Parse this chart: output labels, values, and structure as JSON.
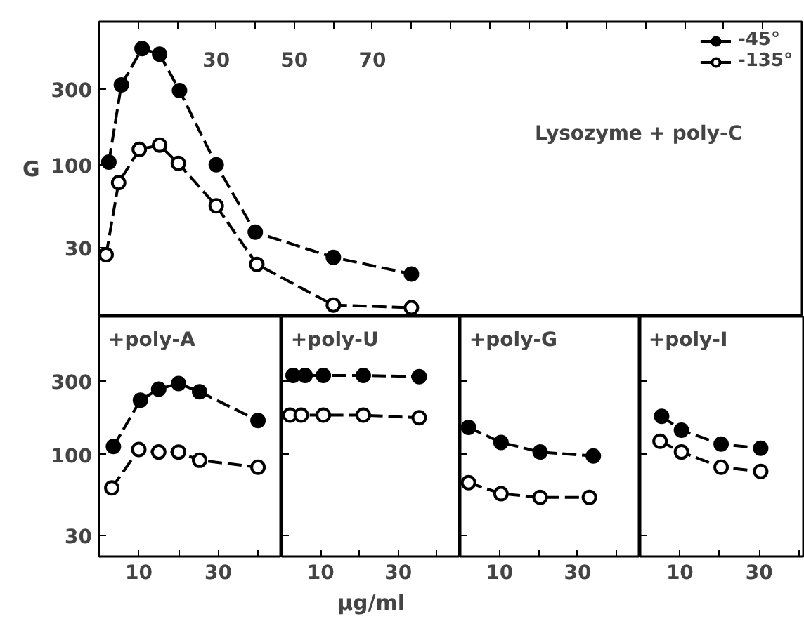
{
  "chart_data": [
    {
      "type": "line",
      "title": "Lysozyme + poly-C",
      "ylabel": "G",
      "xlim": [
        0,
        180
      ],
      "xticks": [
        {
          "value": 10,
          "label": null
        },
        {
          "value": 20,
          "label": null
        },
        30,
        {
          "value": 40,
          "label": null
        },
        50,
        {
          "value": 60,
          "label": null
        },
        70,
        {
          "value": 80,
          "label": null
        },
        {
          "value": 90,
          "label": null
        },
        {
          "value": 100,
          "label": null
        },
        {
          "value": 110,
          "label": null
        },
        {
          "value": 120,
          "label": null
        },
        {
          "value": 130,
          "label": null
        },
        {
          "value": 140,
          "label": null
        },
        {
          "value": 150,
          "label": null
        },
        {
          "value": 160,
          "label": null
        },
        {
          "value": 170,
          "label": null
        }
      ],
      "ylim": [
        11,
        800
      ],
      "yticks": [
        30,
        100,
        300
      ],
      "log": "y",
      "grid": false,
      "marker": "circle",
      "line_style": "dashed",
      "legend": "top right",
      "series": [
        {
          "name": "-45°",
          "color": "#000000",
          "x": [
            2.5,
            5.7,
            11,
            15.5,
            20.6,
            30,
            40,
            60,
            80
          ],
          "values": [
            104,
            319,
            542,
            499,
            294,
            100,
            37.5,
            26,
            20.4
          ]
        },
        {
          "name": "-135°",
          "color": "#000000",
          "x": [
            1.8,
            5,
            10.3,
            15.5,
            20.3,
            30,
            40.4,
            60,
            80
          ],
          "values": [
            27,
            77,
            125,
            133,
            102,
            55,
            23.5,
            13,
            12.5
          ]
        }
      ]
    },
    {
      "type": "line",
      "title": "+poly-A",
      "xlim": [
        0,
        46
      ],
      "xticks": [
        10,
        {
          "value": 20,
          "label": null
        },
        30,
        {
          "value": 40,
          "label": null
        }
      ],
      "ylim": [
        22,
        780
      ],
      "yticks": [
        30,
        100,
        300
      ],
      "log": "y",
      "grid": false,
      "marker": "circle",
      "line_style": "dashed",
      "series": [
        {
          "color": "#000000",
          "x": [
            3.6,
            10.4,
            15,
            20,
            25.3,
            40
          ],
          "values": [
            113,
            225,
            265,
            288,
            255,
            166
          ]
        },
        {
          "color": "#000000",
          "x": [
            3.2,
            10,
            15,
            20,
            25.3,
            40
          ],
          "values": [
            61,
            108,
            104,
            104,
            92,
            83
          ]
        }
      ]
    },
    {
      "type": "line",
      "title": "+poly-U",
      "xlabel": "µg/ml",
      "xlim": [
        0,
        46
      ],
      "xticks": [
        10,
        {
          "value": 20,
          "label": null
        },
        30,
        {
          "value": 40,
          "label": null
        }
      ],
      "ylim": [
        22,
        780
      ],
      "yticks": [
        30,
        100,
        300
      ],
      "tick_labels": "x",
      "log": "y",
      "grid": false,
      "marker": "circle",
      "line_style": "dashed",
      "series": [
        {
          "color": "#000000",
          "x": [
            2.9,
            6,
            10.7,
            21,
            35.4
          ],
          "values": [
            325,
            325,
            325,
            325,
            319
          ]
        },
        {
          "color": "#000000",
          "x": [
            2.1,
            5,
            10.7,
            21,
            35.4
          ],
          "values": [
            180,
            180,
            180,
            180,
            173
          ]
        }
      ]
    },
    {
      "type": "line",
      "title": "+poly-G",
      "xlim": [
        0,
        46
      ],
      "xticks": [
        10,
        {
          "value": 20,
          "label": null
        },
        30,
        {
          "value": 40,
          "label": null
        }
      ],
      "ylim": [
        22,
        780
      ],
      "yticks": [
        30,
        100,
        300
      ],
      "tick_labels": "x",
      "log": "y",
      "grid": false,
      "marker": "circle",
      "line_style": "dashed",
      "series": [
        {
          "color": "#000000",
          "x": [
            2.1,
            10.4,
            20.4,
            34
          ],
          "values": [
            150,
            120,
            104,
            98
          ]
        },
        {
          "color": "#000000",
          "x": [
            2.1,
            10.4,
            20.4,
            33
          ],
          "values": [
            66,
            56,
            53,
            53
          ]
        }
      ]
    },
    {
      "type": "line",
      "title": "+poly-I",
      "xlim": [
        0,
        41.5
      ],
      "xticks": [
        10,
        {
          "value": 20,
          "label": null
        },
        30,
        {
          "value": 40,
          "label": null
        }
      ],
      "ylim": [
        22,
        780
      ],
      "yticks": [
        30,
        100,
        300
      ],
      "tick_labels": "x",
      "log": "y",
      "grid": false,
      "marker": "circle",
      "line_style": "dashed",
      "series": [
        {
          "color": "#000000",
          "x": [
            5.4,
            10.4,
            20.4,
            30.4
          ],
          "values": [
            177,
            144,
            117,
            110
          ]
        },
        {
          "color": "#000000",
          "x": [
            5,
            10.4,
            20.4,
            30.4
          ],
          "values": [
            122,
            104,
            83,
            78
          ]
        }
      ]
    }
  ]
}
